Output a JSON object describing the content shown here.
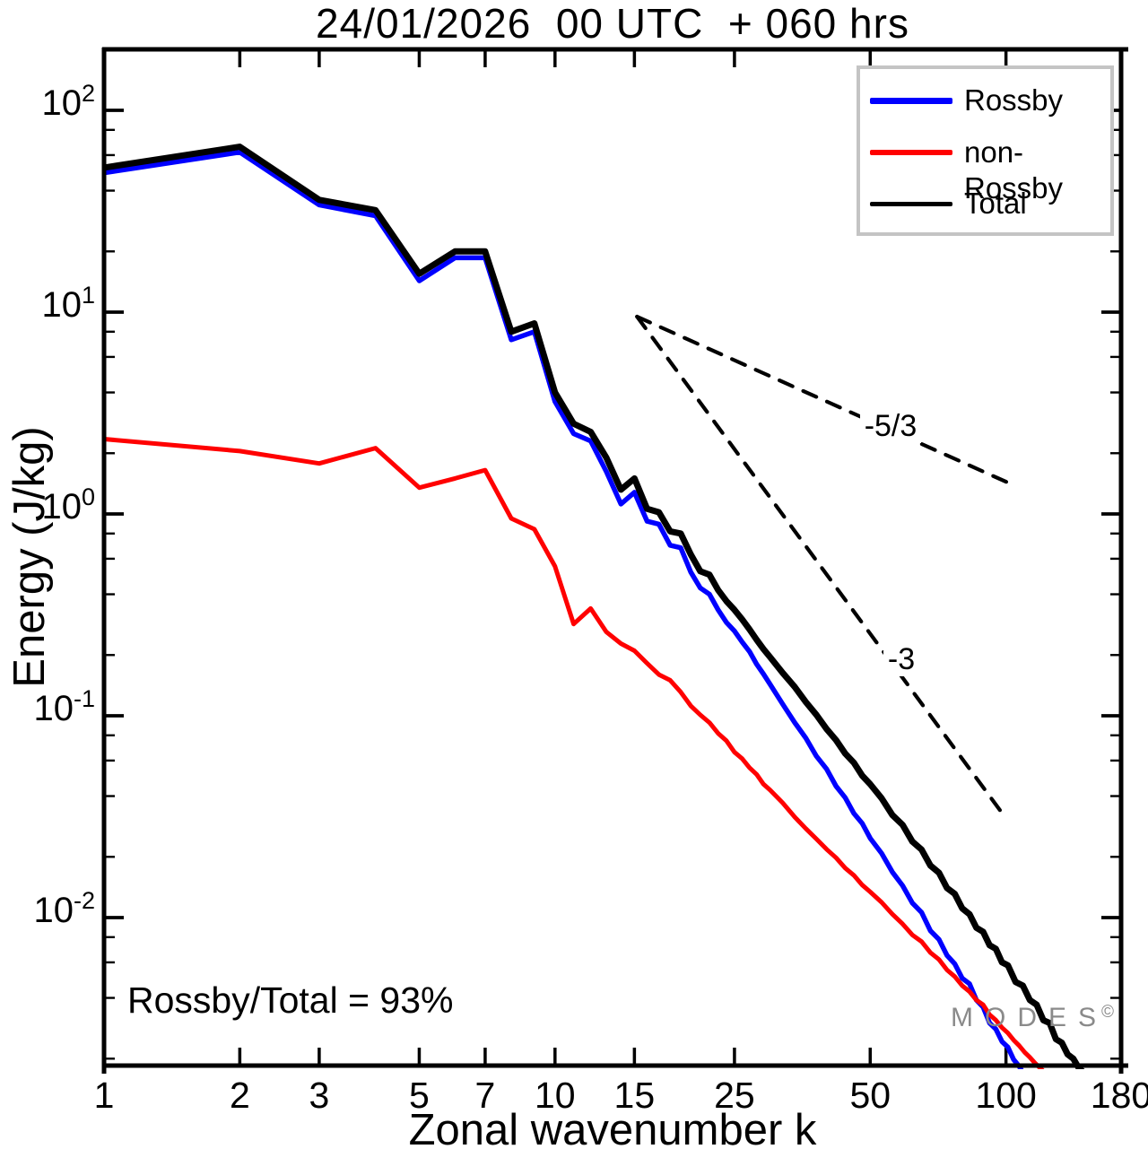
{
  "title": "24/01/2026  00 UTC  + 060 hrs",
  "axes": {
    "xlabel": "Zonal wavenumber k",
    "ylabel": "Energy (J/kg)",
    "x_ticks": [
      1,
      2,
      3,
      5,
      7,
      10,
      15,
      25,
      50,
      100,
      180
    ],
    "y_major_exponents": [
      2,
      1,
      0,
      -1,
      -2
    ],
    "y_minor_multiples": [
      2,
      4,
      6,
      8
    ],
    "x_range": [
      1,
      180
    ],
    "y_range": [
      0.00186,
      200
    ],
    "frame_color": "#000000"
  },
  "legend": {
    "items": [
      {
        "label": "Rossby",
        "color": "#0000ff",
        "thickness": 7
      },
      {
        "label": "non-Rossby",
        "color": "#ff0000",
        "thickness": 6
      },
      {
        "label": "Total",
        "color": "#000000",
        "thickness": 5
      }
    ],
    "border_color": "#c4c4c4"
  },
  "annotations": {
    "ratio_text": "Rossby/Total = 93%",
    "watermark": "MODES",
    "watermark_symbol": "©",
    "watermark_color": "#8a8a8a"
  },
  "chart_data": {
    "type": "line",
    "x_scale": "log",
    "y_scale": "log",
    "title": "24/01/2026  00 UTC  + 060 hrs",
    "xlabel": "Zonal wavenumber k",
    "ylabel": "Energy (J/kg)",
    "xlim": [
      1,
      180
    ],
    "ylim": [
      0.00186,
      200
    ],
    "legend_position": "upper right",
    "grid": false,
    "ref_lines": [
      {
        "name": "slope-5-3",
        "label": "-5/3",
        "from": [
          15.2,
          9.5
        ],
        "to": [
          101,
          1.43
        ],
        "label_at": [
          55.5,
          2.67
        ]
      },
      {
        "name": "slope-3",
        "label": "-3",
        "from": [
          15.2,
          9.5
        ],
        "to": [
          98,
          0.033
        ],
        "label_at": [
          58.6,
          0.187
        ]
      }
    ],
    "series": [
      {
        "name": "Rossby",
        "color": "#0000ff",
        "width": 5.5,
        "points": [
          [
            1,
            49
          ],
          [
            2,
            62
          ],
          [
            3,
            34
          ],
          [
            4,
            30
          ],
          [
            5,
            14.3
          ],
          [
            6,
            18.6
          ],
          [
            7,
            18.6
          ],
          [
            8,
            7.3
          ],
          [
            9,
            8.0
          ],
          [
            10,
            3.6
          ],
          [
            11,
            2.5
          ],
          [
            12,
            2.3
          ],
          [
            13,
            1.62
          ],
          [
            14,
            1.12
          ],
          [
            15,
            1.28
          ],
          [
            16,
            0.92
          ],
          [
            17,
            0.89
          ],
          [
            18,
            0.7
          ],
          [
            19,
            0.68
          ],
          [
            20,
            0.515
          ],
          [
            21,
            0.43
          ],
          [
            22,
            0.4
          ],
          [
            23,
            0.335
          ],
          [
            24,
            0.29
          ],
          [
            25,
            0.263
          ],
          [
            26,
            0.232
          ],
          [
            27,
            0.208
          ],
          [
            28,
            0.18
          ],
          [
            29,
            0.161
          ],
          [
            30,
            0.143
          ],
          [
            32,
            0.114
          ],
          [
            34,
            0.0925
          ],
          [
            36,
            0.0775
          ],
          [
            38,
            0.063
          ],
          [
            40,
            0.0545
          ],
          [
            42,
            0.0448
          ],
          [
            44,
            0.0393
          ],
          [
            46,
            0.0328
          ],
          [
            48,
            0.0293
          ],
          [
            50,
            0.0247
          ],
          [
            53,
            0.0208
          ],
          [
            56,
            0.0168
          ],
          [
            59,
            0.0144
          ],
          [
            62,
            0.0118
          ],
          [
            65,
            0.0106
          ],
          [
            68,
            0.0086
          ],
          [
            71,
            0.0078
          ],
          [
            74,
            0.0065
          ],
          [
            77,
            0.0059
          ],
          [
            80,
            0.005
          ],
          [
            83,
            0.0047
          ],
          [
            86,
            0.0039
          ],
          [
            89,
            0.0036
          ],
          [
            92,
            0.003
          ],
          [
            95,
            0.0028
          ],
          [
            98,
            0.00243
          ],
          [
            101,
            0.00228
          ],
          [
            104,
            0.00198
          ],
          [
            107,
            0.00183
          ],
          [
            109,
            0.0017
          ]
        ]
      },
      {
        "name": "non-Rossby",
        "color": "#ff0000",
        "width": 5,
        "points": [
          [
            1,
            2.35
          ],
          [
            2,
            2.05
          ],
          [
            3,
            1.78
          ],
          [
            4,
            2.12
          ],
          [
            5,
            1.35
          ],
          [
            6,
            1.5
          ],
          [
            7,
            1.65
          ],
          [
            8,
            0.95
          ],
          [
            9,
            0.84
          ],
          [
            10,
            0.55
          ],
          [
            11,
            0.285
          ],
          [
            12,
            0.34
          ],
          [
            13,
            0.26
          ],
          [
            14,
            0.228
          ],
          [
            15,
            0.21
          ],
          [
            16,
            0.182
          ],
          [
            17,
            0.16
          ],
          [
            18,
            0.15
          ],
          [
            19,
            0.131
          ],
          [
            20,
            0.112
          ],
          [
            21,
            0.101
          ],
          [
            22,
            0.0925
          ],
          [
            23,
            0.0818
          ],
          [
            24,
            0.0752
          ],
          [
            25,
            0.066
          ],
          [
            26,
            0.0613
          ],
          [
            27,
            0.0553
          ],
          [
            28,
            0.0512
          ],
          [
            29,
            0.0458
          ],
          [
            30,
            0.0428
          ],
          [
            32,
            0.037
          ],
          [
            34,
            0.0315
          ],
          [
            36,
            0.0276
          ],
          [
            38,
            0.0245
          ],
          [
            40,
            0.0218
          ],
          [
            42,
            0.0198
          ],
          [
            44,
            0.0176
          ],
          [
            46,
            0.0162
          ],
          [
            48,
            0.0145
          ],
          [
            50,
            0.0134
          ],
          [
            53,
            0.0119
          ],
          [
            56,
            0.0104
          ],
          [
            59,
            0.0093
          ],
          [
            62,
            0.0082
          ],
          [
            65,
            0.0076
          ],
          [
            68,
            0.0067
          ],
          [
            71,
            0.0062
          ],
          [
            74,
            0.0055
          ],
          [
            77,
            0.0051
          ],
          [
            80,
            0.0046
          ],
          [
            83,
            0.0043
          ],
          [
            86,
            0.0039
          ],
          [
            89,
            0.0037
          ],
          [
            92,
            0.0033
          ],
          [
            95,
            0.0031
          ],
          [
            98,
            0.00285
          ],
          [
            101,
            0.00268
          ],
          [
            104,
            0.00247
          ],
          [
            107,
            0.00232
          ],
          [
            110,
            0.00215
          ],
          [
            113,
            0.00203
          ],
          [
            116,
            0.0019
          ],
          [
            119,
            0.0018
          ],
          [
            122,
            0.0017
          ]
        ]
      },
      {
        "name": "Total",
        "color": "#000000",
        "width": 7,
        "points": [
          [
            1,
            52
          ],
          [
            2,
            66
          ],
          [
            3,
            36
          ],
          [
            4,
            32
          ],
          [
            5,
            15.5
          ],
          [
            6,
            20
          ],
          [
            7,
            20
          ],
          [
            8,
            8.0
          ],
          [
            9,
            8.8
          ],
          [
            10,
            4.0
          ],
          [
            11,
            2.8
          ],
          [
            12,
            2.55
          ],
          [
            13,
            1.9
          ],
          [
            14,
            1.32
          ],
          [
            15,
            1.5
          ],
          [
            16,
            1.06
          ],
          [
            17,
            1.02
          ],
          [
            18,
            0.82
          ],
          [
            19,
            0.8
          ],
          [
            20,
            0.63
          ],
          [
            21,
            0.52
          ],
          [
            22,
            0.5
          ],
          [
            23,
            0.42
          ],
          [
            24,
            0.37
          ],
          [
            25,
            0.335
          ],
          [
            26,
            0.3
          ],
          [
            27,
            0.268
          ],
          [
            28,
            0.238
          ],
          [
            29,
            0.214
          ],
          [
            30,
            0.195
          ],
          [
            32,
            0.163
          ],
          [
            34,
            0.139
          ],
          [
            36,
            0.117
          ],
          [
            38,
            0.101
          ],
          [
            40,
            0.086
          ],
          [
            42,
            0.0758
          ],
          [
            44,
            0.065
          ],
          [
            46,
            0.0585
          ],
          [
            48,
            0.0505
          ],
          [
            50,
            0.0458
          ],
          [
            53,
            0.039
          ],
          [
            56,
            0.0322
          ],
          [
            59,
            0.0288
          ],
          [
            62,
            0.0238
          ],
          [
            65,
            0.0217
          ],
          [
            68,
            0.0181
          ],
          [
            71,
            0.0167
          ],
          [
            74,
            0.014
          ],
          [
            77,
            0.0131
          ],
          [
            80,
            0.0111
          ],
          [
            83,
            0.0104
          ],
          [
            86,
            0.0089
          ],
          [
            89,
            0.0085
          ],
          [
            92,
            0.0073
          ],
          [
            95,
            0.007
          ],
          [
            98,
            0.006
          ],
          [
            101,
            0.0058
          ],
          [
            105,
            0.0048
          ],
          [
            109,
            0.0046
          ],
          [
            113,
            0.0039
          ],
          [
            117,
            0.0037
          ],
          [
            121,
            0.0031
          ],
          [
            125,
            0.003
          ],
          [
            129,
            0.0025
          ],
          [
            133,
            0.0024
          ],
          [
            137,
            0.0021
          ],
          [
            141,
            0.002
          ],
          [
            145,
            0.0018
          ],
          [
            149,
            0.0017
          ],
          [
            153,
            0.00158
          ]
        ]
      }
    ]
  }
}
